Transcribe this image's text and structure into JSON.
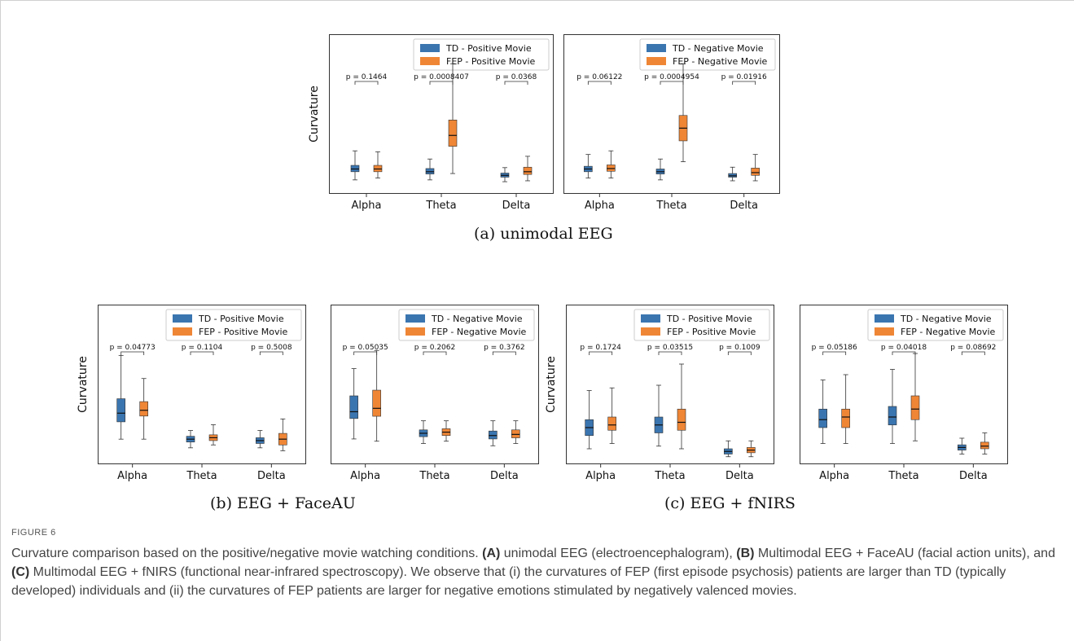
{
  "subfigure_captions": {
    "a": "(a) unimodal EEG",
    "b": "(b) EEG + FaceAU",
    "c": "(c) EEG + fNIRS"
  },
  "figure": {
    "label": "FIGURE 6",
    "caption_parts": [
      "Curvature comparison based on the positive/negative movie watching conditions. ",
      "(A)",
      " unimodal EEG (electroencephalogram), ",
      "(B)",
      " Multimodal EEG + FaceAU (facial action units), and ",
      "(C)",
      " Multimodal EEG + fNIRS (functional near-infrared spectroscopy). We observe that (i) the curvatures of FEP (first episode psychosis) patients are larger than TD (typically developed) individuals and (ii) the curvatures of FEP patients are larger for negative emotions stimulated by negatively valenced movies."
    ]
  },
  "colors": {
    "td": "#3a75b0",
    "fep": "#ef8636"
  },
  "chart_data": [
    {
      "type": "box",
      "ylabel": "Curvature",
      "categories": [
        "Alpha",
        "Theta",
        "Delta"
      ],
      "series": [
        {
          "name": "TD - Positive Movie",
          "boxes": [
            {
              "min": 0.1,
              "q1": 0.19,
              "median": 0.22,
              "q3": 0.26,
              "max": 0.42
            },
            {
              "min": 0.1,
              "q1": 0.165,
              "median": 0.19,
              "q3": 0.225,
              "max": 0.33
            },
            {
              "min": 0.08,
              "q1": 0.13,
              "median": 0.15,
              "q3": 0.175,
              "max": 0.235
            }
          ]
        },
        {
          "name": "FEP - Positive Movie",
          "boxes": [
            {
              "min": 0.12,
              "q1": 0.19,
              "median": 0.22,
              "q3": 0.26,
              "max": 0.41
            },
            {
              "min": 0.17,
              "q1": 0.47,
              "median": 0.59,
              "q3": 0.76,
              "max": 1.38
            },
            {
              "min": 0.09,
              "q1": 0.16,
              "median": 0.19,
              "q3": 0.24,
              "max": 0.36
            }
          ]
        }
      ],
      "pvalues": [
        "p = 0.1464",
        "p = 0.0008407",
        "p = 0.0368"
      ],
      "ylim": [
        0,
        1.4
      ]
    },
    {
      "type": "box",
      "ylabel": "",
      "categories": [
        "Alpha",
        "Theta",
        "Delta"
      ],
      "series": [
        {
          "name": "TD - Negative Movie",
          "boxes": [
            {
              "min": 0.12,
              "q1": 0.19,
              "median": 0.22,
              "q3": 0.25,
              "max": 0.38
            },
            {
              "min": 0.1,
              "q1": 0.165,
              "median": 0.19,
              "q3": 0.22,
              "max": 0.33
            },
            {
              "min": 0.09,
              "q1": 0.13,
              "median": 0.145,
              "q3": 0.17,
              "max": 0.24
            }
          ]
        },
        {
          "name": "FEP - Negative Movie",
          "boxes": [
            {
              "min": 0.12,
              "q1": 0.195,
              "median": 0.225,
              "q3": 0.265,
              "max": 0.42
            },
            {
              "min": 0.3,
              "q1": 0.53,
              "median": 0.67,
              "q3": 0.81,
              "max": 1.38
            },
            {
              "min": 0.09,
              "q1": 0.15,
              "median": 0.18,
              "q3": 0.23,
              "max": 0.38
            }
          ]
        }
      ],
      "pvalues": [
        "p = 0.06122",
        "p = 0.0004954",
        "p = 0.01916"
      ],
      "ylim": [
        0,
        1.4
      ]
    },
    {
      "type": "box",
      "ylabel": "Curvature",
      "categories": [
        "Alpha",
        "Theta",
        "Delta"
      ],
      "series": [
        {
          "name": "TD - Positive Movie",
          "boxes": [
            {
              "min": 0.07,
              "q1": 0.13,
              "median": 0.16,
              "q3": 0.21,
              "max": 0.36
            },
            {
              "min": 0.04,
              "q1": 0.06,
              "median": 0.07,
              "q3": 0.08,
              "max": 0.1
            },
            {
              "min": 0.04,
              "q1": 0.055,
              "median": 0.065,
              "q3": 0.075,
              "max": 0.1
            }
          ]
        },
        {
          "name": "FEP - Positive Movie",
          "boxes": [
            {
              "min": 0.07,
              "q1": 0.15,
              "median": 0.17,
              "q3": 0.2,
              "max": 0.28
            },
            {
              "min": 0.05,
              "q1": 0.065,
              "median": 0.075,
              "q3": 0.085,
              "max": 0.12
            },
            {
              "min": 0.03,
              "q1": 0.05,
              "median": 0.07,
              "q3": 0.09,
              "max": 0.14
            }
          ]
        }
      ],
      "pvalues": [
        "p = 0.04773",
        "p = 0.1104",
        "p = 0.5008"
      ],
      "ylim": [
        0,
        0.44
      ]
    },
    {
      "type": "box",
      "ylabel": "",
      "categories": [
        "Alpha",
        "Theta",
        "Delta"
      ],
      "series": [
        {
          "name": "TD - Negative Movie",
          "boxes": [
            {
              "min": 0.09,
              "q1": 0.18,
              "median": 0.21,
              "q3": 0.28,
              "max": 0.4
            },
            {
              "min": 0.07,
              "q1": 0.1,
              "median": 0.115,
              "q3": 0.13,
              "max": 0.17
            },
            {
              "min": 0.06,
              "q1": 0.09,
              "median": 0.105,
              "q3": 0.125,
              "max": 0.17
            }
          ]
        },
        {
          "name": "FEP - Negative Movie",
          "boxes": [
            {
              "min": 0.08,
              "q1": 0.19,
              "median": 0.225,
              "q3": 0.305,
              "max": 0.48
            },
            {
              "min": 0.08,
              "q1": 0.105,
              "median": 0.12,
              "q3": 0.135,
              "max": 0.17
            },
            {
              "min": 0.07,
              "q1": 0.095,
              "median": 0.11,
              "q3": 0.13,
              "max": 0.17
            }
          ]
        }
      ],
      "pvalues": [
        "p = 0.05035",
        "p = 0.2062",
        "p = 0.3762"
      ],
      "ylim": [
        0,
        0.56
      ]
    },
    {
      "type": "box",
      "ylabel": "Curvature",
      "categories": [
        "Alpha",
        "Theta",
        "Delta"
      ],
      "series": [
        {
          "name": "TD - Positive Movie",
          "boxes": [
            {
              "min": 0.04,
              "q1": 0.09,
              "median": 0.12,
              "q3": 0.15,
              "max": 0.26
            },
            {
              "min": 0.05,
              "q1": 0.1,
              "median": 0.13,
              "q3": 0.16,
              "max": 0.28
            },
            {
              "min": 0.01,
              "q1": 0.02,
              "median": 0.03,
              "q3": 0.04,
              "max": 0.07
            }
          ]
        },
        {
          "name": "FEP - Positive Movie",
          "boxes": [
            {
              "min": 0.06,
              "q1": 0.11,
              "median": 0.13,
              "q3": 0.16,
              "max": 0.27
            },
            {
              "min": 0.04,
              "q1": 0.11,
              "median": 0.14,
              "q3": 0.19,
              "max": 0.36
            },
            {
              "min": 0.01,
              "q1": 0.025,
              "median": 0.035,
              "q3": 0.045,
              "max": 0.07
            }
          ]
        }
      ],
      "pvalues": [
        "p = 0.1724",
        "p = 0.03515",
        "p = 0.1009"
      ],
      "ylim": [
        0,
        0.48
      ]
    },
    {
      "type": "box",
      "ylabel": "",
      "categories": [
        "Alpha",
        "Theta",
        "Delta"
      ],
      "series": [
        {
          "name": "TD - Negative Movie",
          "boxes": [
            {
              "min": 0.06,
              "q1": 0.12,
              "median": 0.15,
              "q3": 0.19,
              "max": 0.3
            },
            {
              "min": 0.06,
              "q1": 0.13,
              "median": 0.16,
              "q3": 0.2,
              "max": 0.34
            },
            {
              "min": 0.02,
              "q1": 0.035,
              "median": 0.045,
              "q3": 0.055,
              "max": 0.08
            }
          ]
        },
        {
          "name": "FEP - Negative Movie",
          "boxes": [
            {
              "min": 0.06,
              "q1": 0.12,
              "median": 0.16,
              "q3": 0.19,
              "max": 0.32
            },
            {
              "min": 0.07,
              "q1": 0.15,
              "median": 0.19,
              "q3": 0.24,
              "max": 0.4
            },
            {
              "min": 0.02,
              "q1": 0.04,
              "median": 0.05,
              "q3": 0.065,
              "max": 0.1
            }
          ]
        }
      ],
      "pvalues": [
        "p = 0.05186",
        "p = 0.04018",
        "p = 0.08692"
      ],
      "ylim": [
        0,
        0.48
      ]
    }
  ]
}
